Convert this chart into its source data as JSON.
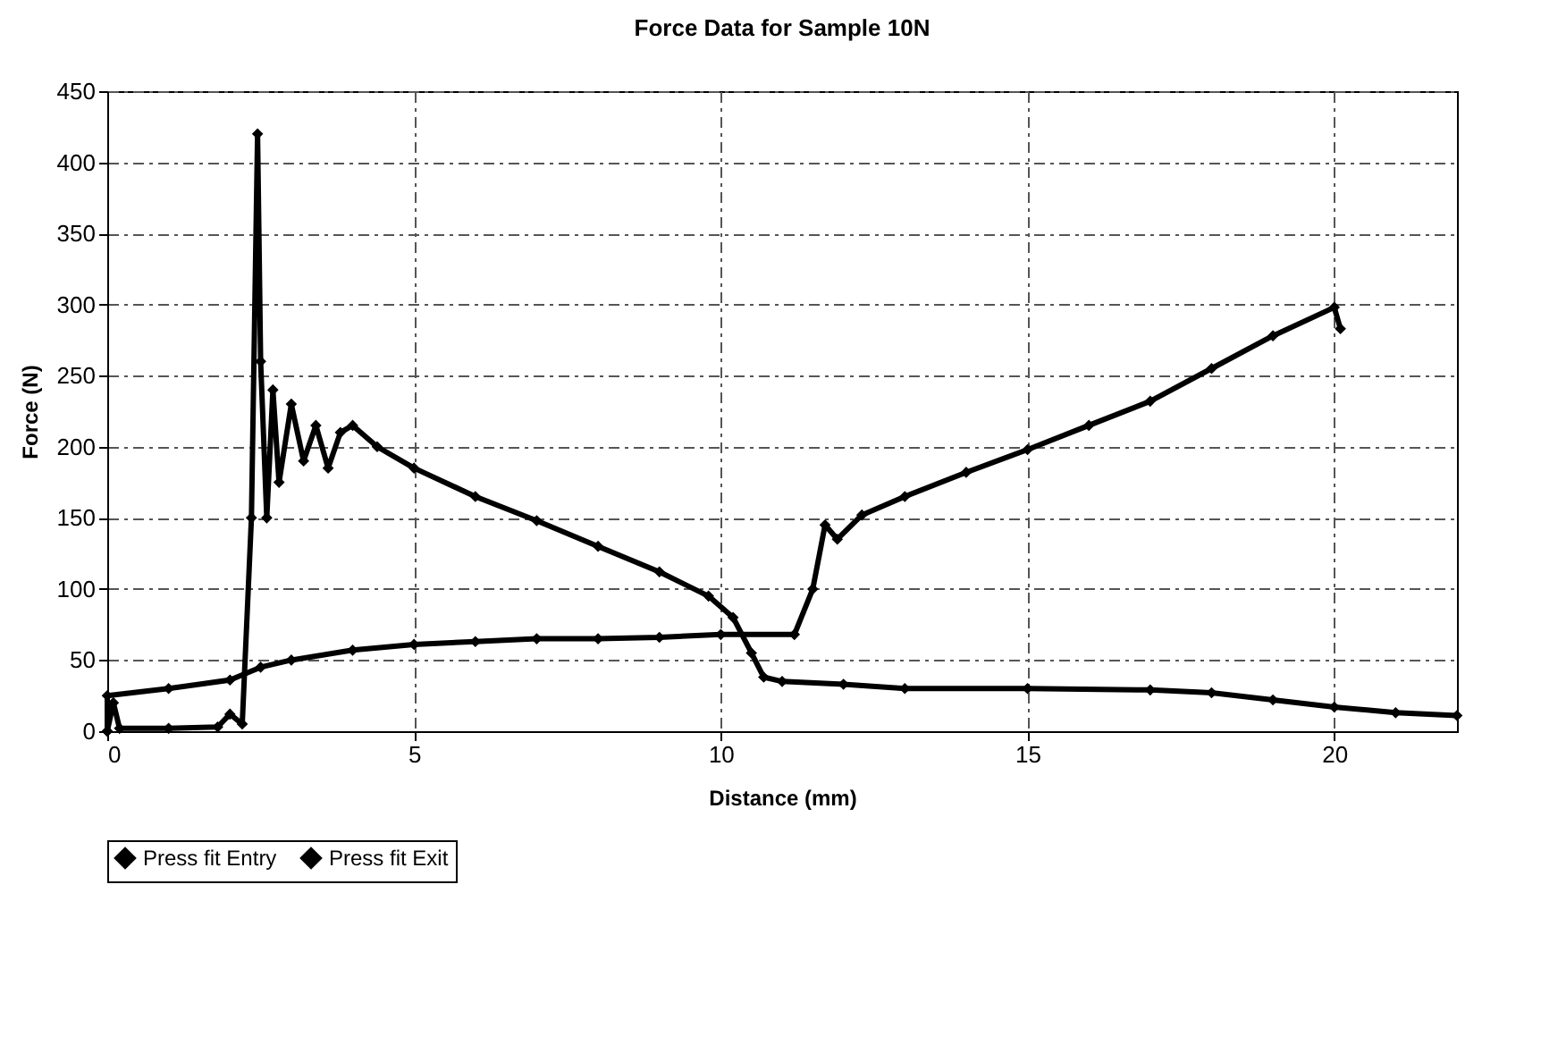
{
  "chart_data": {
    "type": "line",
    "title": "Force Data for Sample 10N",
    "xlabel": "Distance (mm)",
    "ylabel": "Force (N)",
    "xlim": [
      0,
      22
    ],
    "xticks": [
      0,
      5,
      10,
      15,
      20
    ],
    "ylim": [
      0,
      450
    ],
    "yticks": [
      0,
      50,
      100,
      150,
      200,
      250,
      300,
      350,
      400,
      450
    ],
    "grid": true,
    "legend": "bottom",
    "marker": "diamond",
    "line_style": "solid",
    "series": [
      {
        "name": "Press fit Entry",
        "color": "#000000",
        "x": [
          0,
          0.1,
          0.2,
          1.0,
          1.8,
          2.0,
          2.2,
          2.35,
          2.45,
          2.5,
          2.6,
          2.7,
          2.8,
          3.0,
          3.2,
          3.4,
          3.6,
          3.8,
          4.0,
          4.4,
          5,
          6,
          7,
          8,
          9,
          9.8,
          10.2,
          10.5,
          10.7,
          11,
          12,
          13,
          15,
          17,
          18,
          19,
          20,
          21,
          22
        ],
        "values": [
          0,
          20,
          2,
          2,
          3,
          12,
          5,
          150,
          420,
          260,
          150,
          240,
          175,
          230,
          190,
          215,
          185,
          210,
          215,
          200,
          185,
          165,
          148,
          130,
          112,
          95,
          80,
          55,
          38,
          35,
          33,
          30,
          30,
          29,
          27,
          22,
          17,
          13,
          11
        ]
      },
      {
        "name": "Press fit Exit",
        "color": "#000000",
        "x": [
          0,
          0,
          1,
          2,
          2.5,
          3,
          4,
          5,
          6,
          7,
          8,
          9,
          10,
          11.2,
          11.5,
          11.7,
          11.9,
          12.3,
          13,
          14,
          15,
          16,
          17,
          18,
          19,
          20,
          20.1
        ],
        "values": [
          0,
          25,
          30,
          36,
          45,
          50,
          57,
          61,
          63,
          65,
          65,
          66,
          68,
          68,
          100,
          145,
          135,
          152,
          165,
          182,
          198,
          215,
          232,
          255,
          278,
          298,
          283
        ]
      }
    ]
  }
}
